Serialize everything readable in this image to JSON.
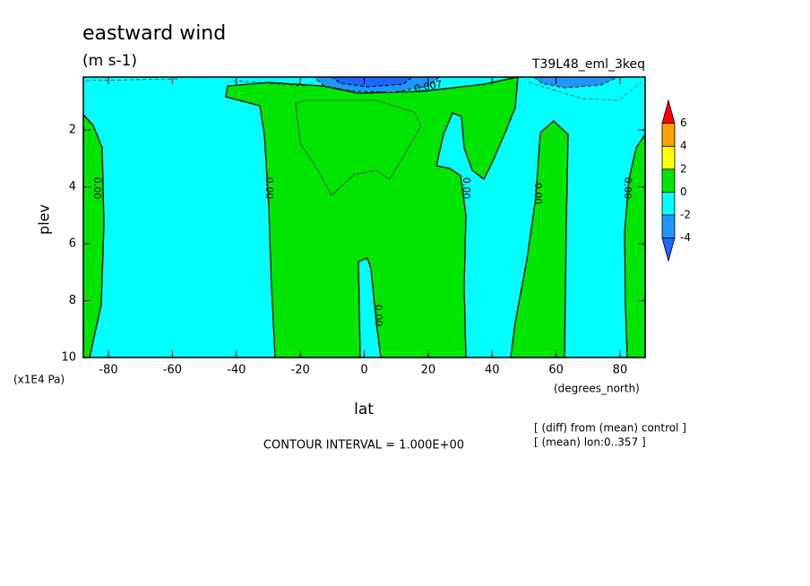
{
  "chart_data": {
    "type": "contour",
    "title": "eastward wind",
    "subtitle": "(m s-1)",
    "right_title": "T39L48_eml_3keq",
    "x_label": "lat",
    "y_label": "plev",
    "x_units": "(degrees_north)",
    "y_units": "(x1E4 Pa)",
    "xlim": [
      -87.86,
      87.86
    ],
    "ylim": [
      10,
      0.14
    ],
    "xticks": [
      -80,
      -60,
      -40,
      -20,
      0,
      20,
      40,
      60,
      80
    ],
    "yticks": [
      2,
      4,
      6,
      8,
      10
    ],
    "contour_labels": [
      "0.00",
      "0.00",
      "0.00",
      "0.00",
      "0.00",
      "0.00",
      "0.007"
    ],
    "colorbar": {
      "levels": [
        -4,
        -2,
        0,
        2,
        4,
        6
      ],
      "colors": [
        "#1e64ff",
        "#1e96ff",
        "#00ffff",
        "#00e600",
        "#ffff00",
        "#ffa000",
        "#ff0000"
      ]
    },
    "annotations": [
      "CONTOUR INTERVAL = 1.000E+00",
      "[ (diff) from (mean) control ]",
      "[ (mean) lon:0..357 ]"
    ]
  }
}
